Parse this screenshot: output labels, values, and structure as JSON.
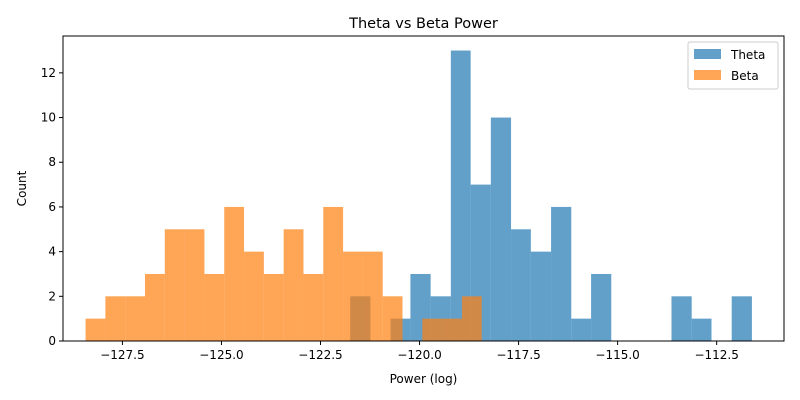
{
  "chart_data": {
    "type": "histogram",
    "title": "Theta vs Beta Power",
    "xlabel": "Power (log)",
    "ylabel": "Count",
    "xlim": [
      -129.0,
      -110.8
    ],
    "ylim": [
      0,
      13.65
    ],
    "xticks": [
      -127.5,
      -125.0,
      -122.5,
      -120.0,
      -117.5,
      -115.0,
      -112.5
    ],
    "xtick_labels": [
      "−127.5",
      "−125.0",
      "−122.5",
      "−120.0",
      "−117.5",
      "−115.0",
      "−112.5"
    ],
    "yticks": [
      0,
      2,
      4,
      6,
      8,
      10,
      12
    ],
    "ytick_labels": [
      "0",
      "2",
      "4",
      "6",
      "8",
      "10",
      "12"
    ],
    "grid": false,
    "legend_position": "top-right",
    "series": [
      {
        "name": "Theta",
        "color": "#1f77b4",
        "alpha": 0.7,
        "bin_edges": [
          -121.75,
          -121.24,
          -120.73,
          -120.23,
          -119.72,
          -119.21,
          -118.71,
          -118.2,
          -117.69,
          -117.19,
          -116.68,
          -116.17,
          -115.67,
          -115.16,
          -114.65,
          -114.15,
          -113.64,
          -113.13,
          -112.63,
          -112.12,
          -111.61
        ],
        "counts": [
          2,
          0,
          1,
          3,
          2,
          13,
          7,
          10,
          5,
          4,
          6,
          1,
          3,
          0,
          0,
          0,
          2,
          1,
          0,
          2
        ]
      },
      {
        "name": "Beta",
        "color": "#ff7f0e",
        "alpha": 0.7,
        "bin_edges": [
          -128.43,
          -127.93,
          -127.43,
          -126.93,
          -126.43,
          -125.93,
          -125.43,
          -124.93,
          -124.43,
          -123.93,
          -123.43,
          -122.93,
          -122.43,
          -121.93,
          -121.43,
          -120.93,
          -120.43,
          -119.93,
          -119.43,
          -118.93,
          -118.43,
          -117.93
        ],
        "counts": [
          1,
          2,
          2,
          3,
          5,
          5,
          3,
          6,
          4,
          3,
          5,
          3,
          6,
          4,
          4,
          2,
          0,
          1,
          1,
          2,
          0
        ]
      }
    ]
  }
}
